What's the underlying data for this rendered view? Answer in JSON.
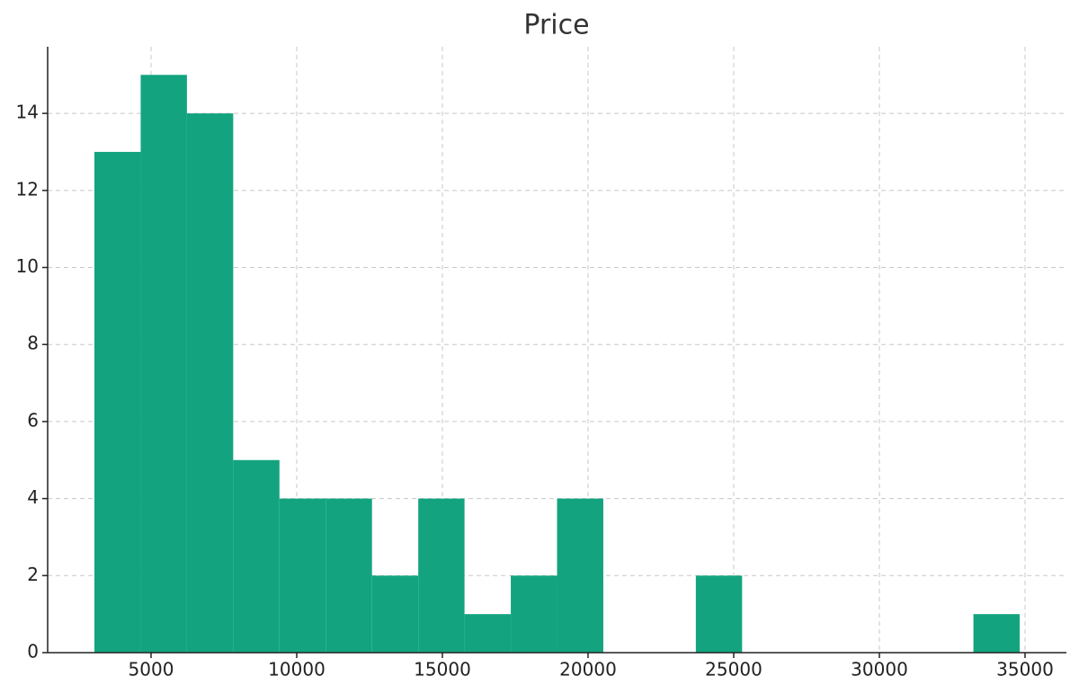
{
  "chart_data": {
    "type": "histogram",
    "title": "Price",
    "bins": [
      3056,
      4644,
      6232,
      7820,
      9408,
      10996,
      12584,
      14172,
      15760,
      17348,
      18936,
      20524,
      22112,
      23700,
      25288,
      26876,
      28464,
      30052,
      31640,
      33228,
      34816
    ],
    "values": [
      13,
      15,
      14,
      5,
      4,
      4,
      2,
      4,
      1,
      2,
      4,
      0,
      0,
      2,
      0,
      0,
      0,
      0,
      0,
      1
    ],
    "color": "#13a47f",
    "xlim": [
      1451,
      36420
    ],
    "xticks": [
      5000,
      10000,
      15000,
      20000,
      25000,
      30000,
      35000
    ],
    "ylim": [
      0,
      15.73
    ],
    "yticks": [
      0,
      2,
      4,
      6,
      8,
      10,
      12,
      14
    ],
    "grid": true
  }
}
